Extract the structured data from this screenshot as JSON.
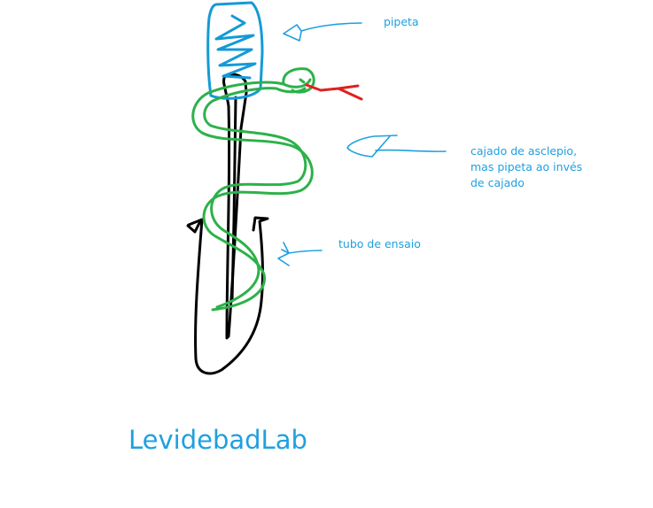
{
  "colors": {
    "label_text": "#1ea0e0",
    "pipette_stroke": "#149ad6",
    "arrow_stroke": "#1ea0e0",
    "snake_stroke": "#2db14a",
    "tongue_stroke": "#e02020",
    "tube_stroke": "#000000",
    "brand_text": "#1ea0e0"
  },
  "labels": {
    "pipeta": "pipeta",
    "cajado_line1": "cajado de asclepio,",
    "cajado_line2": "mas pipeta ao invés",
    "cajado_line3": "de cajado",
    "tubo": "tubo de ensaio"
  },
  "brand": "LevidebadLab"
}
